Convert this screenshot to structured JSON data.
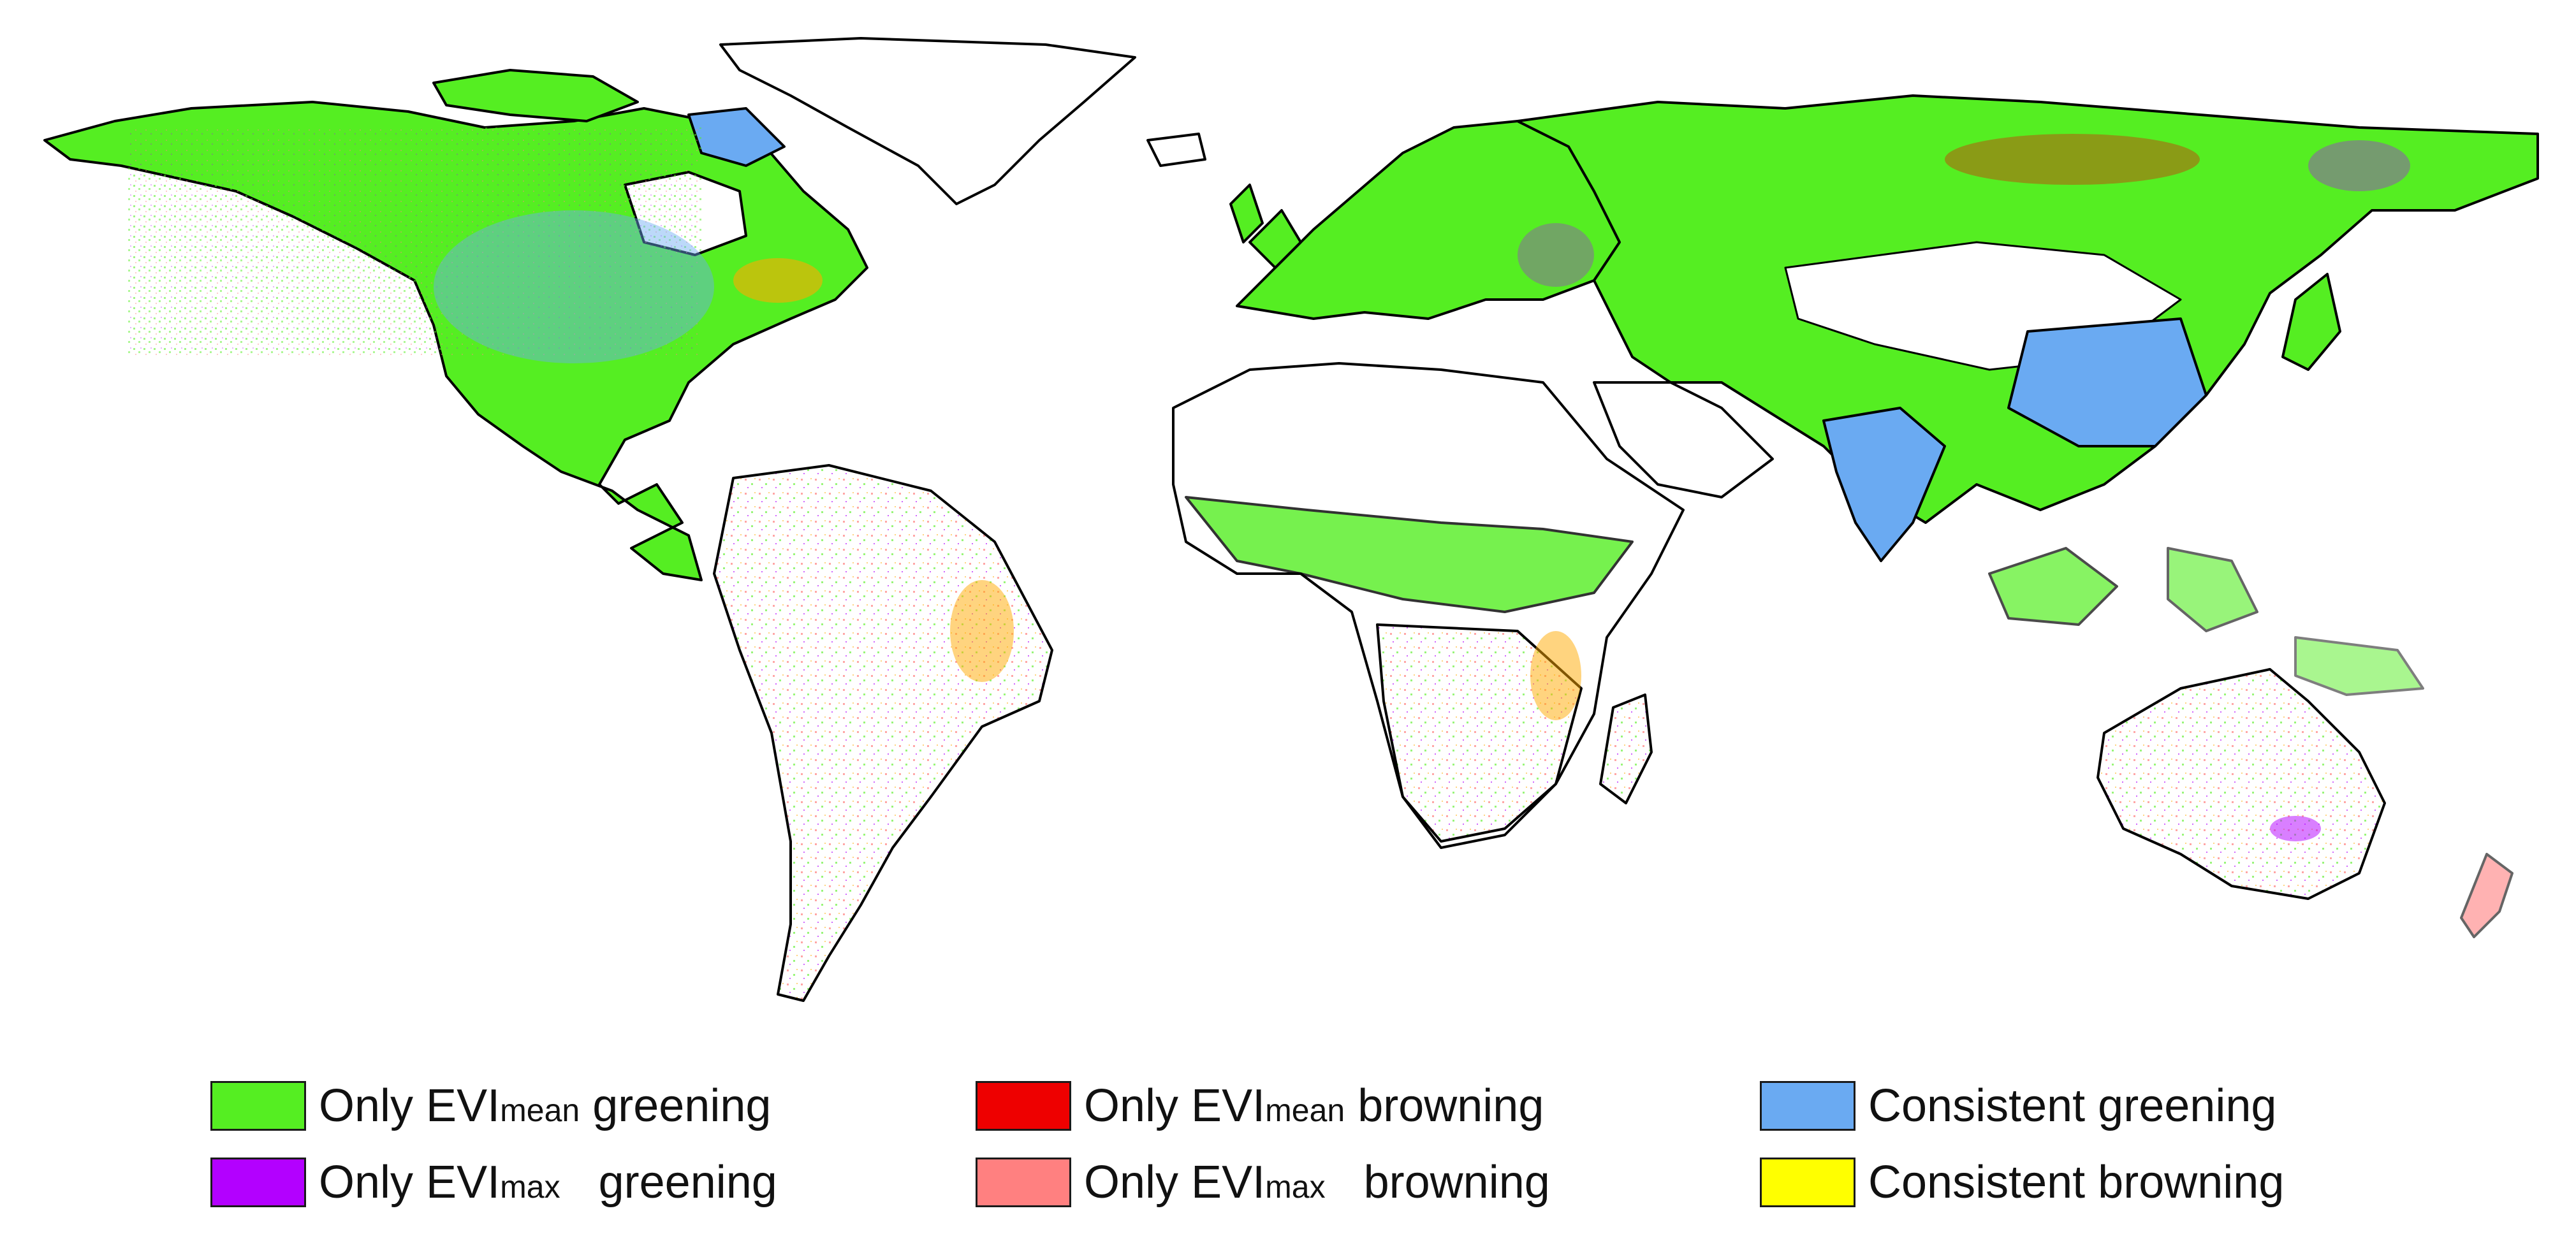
{
  "map": {
    "region": "world",
    "background": "#ffffff",
    "land_fill": "#ffffff",
    "border_color": "#000000"
  },
  "legend": {
    "items": [
      {
        "id": "mean-greening",
        "pre": "Only EVI",
        "sub": "mean",
        "post": " greening",
        "color": "#55ee22"
      },
      {
        "id": "mean-browning",
        "pre": "Only EVI",
        "sub": "mean",
        "post": " browning",
        "color": "#ee0000"
      },
      {
        "id": "consistent-greening",
        "pre": "Consistent greening",
        "sub": "",
        "post": "",
        "color": "#6aaaf2"
      },
      {
        "id": "max-greening",
        "pre": "Only EVI",
        "sub": "max",
        "post": "   greening",
        "color": "#b300ff"
      },
      {
        "id": "max-browning",
        "pre": "Only EVI",
        "sub": "max",
        "post": "   browning",
        "color": "#ff8080"
      },
      {
        "id": "consistent-browning",
        "pre": "Consistent browning",
        "sub": "",
        "post": "",
        "color": "#ffff00"
      }
    ]
  }
}
